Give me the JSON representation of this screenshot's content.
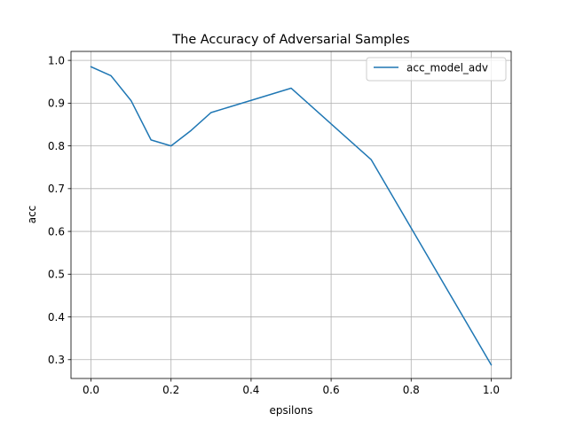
{
  "chart_data": {
    "type": "line",
    "title": "The Accuracy of Adversarial Samples",
    "xlabel": "epsilons",
    "ylabel": "acc",
    "xlim": [
      -0.05,
      1.05
    ],
    "ylim": [
      0.256,
      1.021
    ],
    "grid": true,
    "legend_position": "top-right",
    "x_ticks": [
      0.0,
      0.2,
      0.4,
      0.6,
      0.8,
      1.0
    ],
    "x_tick_labels": [
      "0.0",
      "0.2",
      "0.4",
      "0.6",
      "0.8",
      "1.0"
    ],
    "y_ticks": [
      0.3,
      0.4,
      0.5,
      0.6,
      0.7,
      0.8,
      0.9,
      1.0
    ],
    "y_tick_labels": [
      "0.3",
      "0.4",
      "0.5",
      "0.6",
      "0.7",
      "0.8",
      "0.9",
      "1.0"
    ],
    "series": [
      {
        "name": "acc_model_adv",
        "color": "#1f77b4",
        "x": [
          0.0,
          0.05,
          0.1,
          0.15,
          0.2,
          0.25,
          0.3,
          0.5,
          0.7,
          1.0
        ],
        "y": [
          0.985,
          0.964,
          0.906,
          0.814,
          0.8,
          0.836,
          0.878,
          0.935,
          0.768,
          0.288
        ]
      }
    ]
  }
}
